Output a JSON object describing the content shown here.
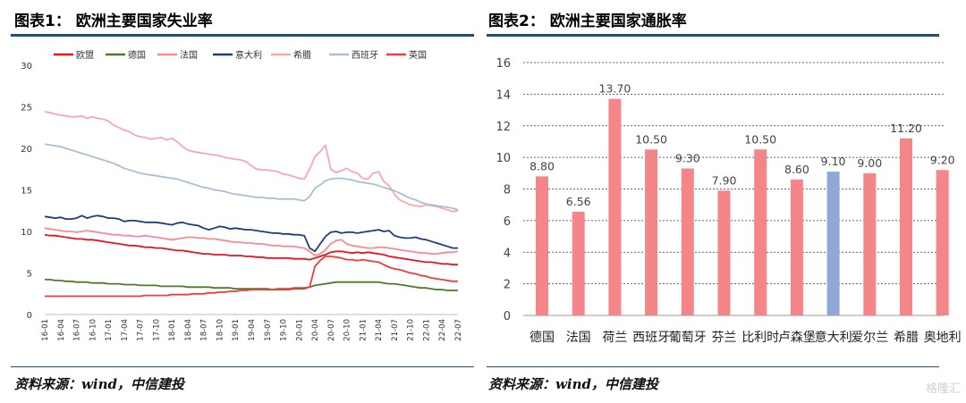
{
  "left_panel": {
    "title": "图表1： 欧洲主要国家失业率",
    "source": "资料来源：wind，中信建投"
  },
  "right_panel": {
    "title": "图表2： 欧洲主要国家通胀率",
    "source": "资料来源：wind，中信建投"
  },
  "watermark": "格隆汇",
  "colors": {
    "accent_rule": "#1f4e79",
    "bar_default": "#f4868a",
    "bar_highlight": "#8fa8d8"
  },
  "chart_data": [
    {
      "type": "line",
      "ylim": [
        0,
        30
      ],
      "yticks": [
        0,
        5,
        10,
        15,
        20,
        25,
        30
      ],
      "grid": false,
      "legend_placement": "top",
      "x": [
        "16-01",
        "16-02",
        "16-03",
        "16-04",
        "16-05",
        "16-06",
        "16-07",
        "16-08",
        "16-09",
        "16-10",
        "16-11",
        "16-12",
        "17-01",
        "17-02",
        "17-03",
        "17-04",
        "17-05",
        "17-06",
        "17-07",
        "17-08",
        "17-09",
        "17-10",
        "17-11",
        "17-12",
        "18-01",
        "18-02",
        "18-03",
        "18-04",
        "18-05",
        "18-06",
        "18-07",
        "18-08",
        "18-09",
        "18-10",
        "18-11",
        "18-12",
        "19-01",
        "19-02",
        "19-03",
        "19-04",
        "19-05",
        "19-06",
        "19-07",
        "19-08",
        "19-09",
        "19-10",
        "19-11",
        "19-12",
        "20-01",
        "20-02",
        "20-03",
        "20-04",
        "20-05",
        "20-06",
        "20-07",
        "20-08",
        "20-09",
        "20-10",
        "20-11",
        "20-12",
        "21-01",
        "21-02",
        "21-03",
        "21-04",
        "21-05",
        "21-06",
        "21-07",
        "21-08",
        "21-09",
        "21-10",
        "21-11",
        "21-12",
        "22-01",
        "22-02",
        "22-03",
        "22-04",
        "22-05",
        "22-06",
        "22-07"
      ],
      "xticks": [
        "16-01",
        "16-04",
        "16-07",
        "16-10",
        "17-01",
        "17-04",
        "17-07",
        "17-10",
        "18-01",
        "18-04",
        "18-07",
        "18-10",
        "19-01",
        "19-04",
        "19-07",
        "19-10",
        "20-01",
        "20-04",
        "20-07",
        "20-10",
        "21-01",
        "21-04",
        "21-07",
        "21-10",
        "22-01",
        "22-04",
        "22-07"
      ],
      "series": [
        {
          "name": "欧盟",
          "color": "#e0191f",
          "values": [
            9.6,
            9.5,
            9.5,
            9.4,
            9.3,
            9.2,
            9.1,
            9.1,
            9.0,
            9.0,
            8.9,
            8.8,
            8.7,
            8.6,
            8.5,
            8.4,
            8.3,
            8.3,
            8.2,
            8.1,
            8.1,
            8.0,
            8.0,
            7.9,
            7.8,
            7.7,
            7.7,
            7.6,
            7.5,
            7.4,
            7.3,
            7.3,
            7.2,
            7.2,
            7.2,
            7.1,
            7.1,
            7.1,
            7.0,
            7.0,
            6.9,
            6.9,
            6.8,
            6.8,
            6.8,
            6.8,
            6.8,
            6.7,
            6.7,
            6.7,
            6.6,
            6.8,
            7.0,
            7.2,
            7.5,
            7.6,
            7.6,
            7.5,
            7.4,
            7.5,
            7.4,
            7.5,
            7.4,
            7.3,
            7.2,
            7.0,
            6.9,
            6.8,
            6.7,
            6.6,
            6.5,
            6.4,
            6.3,
            6.3,
            6.2,
            6.1,
            6.1,
            6.0,
            6.0
          ]
        },
        {
          "name": "德国",
          "color": "#4f7a28",
          "values": [
            4.2,
            4.2,
            4.1,
            4.1,
            4.0,
            4.0,
            3.9,
            3.9,
            3.9,
            3.8,
            3.8,
            3.8,
            3.7,
            3.7,
            3.7,
            3.6,
            3.6,
            3.6,
            3.5,
            3.5,
            3.5,
            3.5,
            3.4,
            3.4,
            3.4,
            3.4,
            3.4,
            3.3,
            3.3,
            3.3,
            3.3,
            3.3,
            3.2,
            3.2,
            3.2,
            3.2,
            3.1,
            3.1,
            3.1,
            3.1,
            3.1,
            3.1,
            3.1,
            3.0,
            3.0,
            3.0,
            3.0,
            3.1,
            3.1,
            3.1,
            3.3,
            3.5,
            3.6,
            3.7,
            3.8,
            3.9,
            3.9,
            3.9,
            3.9,
            3.9,
            3.9,
            3.9,
            3.9,
            3.9,
            3.8,
            3.7,
            3.7,
            3.6,
            3.5,
            3.4,
            3.3,
            3.2,
            3.2,
            3.1,
            3.0,
            3.0,
            2.9,
            2.9,
            2.9
          ]
        },
        {
          "name": "法国",
          "color": "#f48b95",
          "values": [
            10.4,
            10.3,
            10.2,
            10.1,
            10.0,
            10.0,
            9.9,
            10.0,
            10.1,
            10.0,
            9.9,
            9.8,
            9.7,
            9.6,
            9.6,
            9.5,
            9.5,
            9.4,
            9.4,
            9.5,
            9.4,
            9.3,
            9.2,
            9.1,
            9.0,
            9.1,
            9.2,
            9.3,
            9.3,
            9.2,
            9.2,
            9.1,
            9.1,
            9.0,
            8.9,
            8.8,
            8.7,
            8.7,
            8.6,
            8.6,
            8.5,
            8.5,
            8.4,
            8.3,
            8.3,
            8.2,
            8.2,
            8.2,
            8.1,
            8.0,
            7.6,
            7.1,
            7.3,
            7.8,
            8.5,
            8.9,
            9.0,
            8.5,
            8.3,
            8.2,
            8.1,
            8.0,
            8.0,
            8.1,
            8.1,
            8.0,
            7.9,
            7.8,
            7.7,
            7.6,
            7.5,
            7.4,
            7.4,
            7.3,
            7.3,
            7.4,
            7.5,
            7.5,
            7.6
          ]
        },
        {
          "name": "意大利",
          "color": "#1f3d7a",
          "values": [
            11.8,
            11.7,
            11.6,
            11.7,
            11.5,
            11.5,
            11.6,
            11.9,
            11.6,
            11.8,
            11.9,
            11.8,
            11.6,
            11.6,
            11.5,
            11.2,
            11.3,
            11.3,
            11.2,
            11.1,
            11.1,
            11.1,
            11.0,
            10.9,
            10.8,
            11.0,
            11.1,
            10.9,
            10.8,
            10.7,
            10.4,
            10.2,
            10.4,
            10.6,
            10.5,
            10.3,
            10.4,
            10.3,
            10.2,
            10.2,
            10.1,
            10.0,
            9.9,
            9.8,
            9.8,
            9.7,
            9.7,
            9.6,
            9.6,
            9.5,
            8.0,
            7.6,
            8.5,
            9.4,
            9.9,
            10.0,
            9.8,
            9.9,
            9.9,
            9.8,
            9.9,
            10.0,
            10.1,
            10.2,
            10.0,
            10.1,
            9.5,
            9.3,
            9.2,
            9.2,
            9.3,
            9.1,
            9.0,
            8.8,
            8.6,
            8.4,
            8.2,
            8.0,
            8.0
          ]
        },
        {
          "name": "希腊",
          "color": "#f7a8ae",
          "values": [
            24.4,
            24.3,
            24.1,
            24.0,
            23.9,
            23.8,
            23.8,
            23.9,
            23.6,
            23.8,
            23.6,
            23.5,
            23.3,
            22.8,
            22.5,
            22.2,
            22.0,
            21.6,
            21.4,
            21.3,
            21.1,
            21.2,
            21.3,
            21.0,
            21.2,
            20.8,
            20.2,
            19.8,
            19.6,
            19.5,
            19.4,
            19.3,
            19.2,
            19.1,
            18.9,
            18.8,
            18.7,
            18.6,
            18.4,
            17.9,
            17.5,
            17.4,
            17.4,
            17.3,
            17.2,
            16.9,
            16.8,
            16.6,
            16.4,
            16.3,
            17.5,
            19.0,
            19.6,
            20.4,
            17.5,
            17.1,
            17.3,
            17.6,
            17.2,
            17.0,
            16.4,
            16.3,
            17.0,
            17.2,
            16.0,
            15.5,
            14.5,
            13.8,
            13.5,
            13.2,
            13.1,
            13.0,
            13.2,
            13.1,
            13.0,
            12.8,
            12.6,
            12.4,
            12.5
          ]
        },
        {
          "name": "西班牙",
          "color": "#a9bfd3",
          "values": [
            20.5,
            20.4,
            20.3,
            20.2,
            20.0,
            19.8,
            19.6,
            19.4,
            19.2,
            19.0,
            18.8,
            18.6,
            18.4,
            18.2,
            17.9,
            17.6,
            17.4,
            17.2,
            17.0,
            16.9,
            16.8,
            16.7,
            16.6,
            16.5,
            16.4,
            16.3,
            16.1,
            15.9,
            15.7,
            15.5,
            15.3,
            15.2,
            15.0,
            14.9,
            14.8,
            14.6,
            14.5,
            14.4,
            14.3,
            14.2,
            14.1,
            14.1,
            14.0,
            14.0,
            13.9,
            13.9,
            13.9,
            13.9,
            13.8,
            13.7,
            14.2,
            15.2,
            15.6,
            16.1,
            16.3,
            16.4,
            16.4,
            16.3,
            16.2,
            16.0,
            15.9,
            15.8,
            15.7,
            15.5,
            15.3,
            15.1,
            14.9,
            14.6,
            14.3,
            14.0,
            13.8,
            13.5,
            13.3,
            13.2,
            13.1,
            13.0,
            12.9,
            12.8,
            12.6
          ]
        },
        {
          "name": "英国",
          "color": "#f03c3c",
          "values": [
            2.2,
            2.2,
            2.2,
            2.2,
            2.2,
            2.2,
            2.2,
            2.2,
            2.2,
            2.2,
            2.2,
            2.2,
            2.2,
            2.2,
            2.2,
            2.2,
            2.2,
            2.2,
            2.2,
            2.3,
            2.3,
            2.3,
            2.3,
            2.3,
            2.4,
            2.4,
            2.4,
            2.4,
            2.5,
            2.5,
            2.5,
            2.6,
            2.6,
            2.7,
            2.7,
            2.8,
            2.8,
            2.9,
            2.9,
            3.0,
            3.0,
            3.0,
            3.0,
            3.0,
            3.1,
            3.1,
            3.1,
            3.2,
            3.2,
            3.2,
            3.3,
            5.8,
            6.5,
            7.0,
            7.0,
            6.9,
            6.8,
            6.6,
            6.6,
            6.5,
            6.6,
            6.5,
            6.4,
            6.3,
            6.0,
            5.7,
            5.5,
            5.4,
            5.2,
            5.0,
            4.9,
            4.7,
            4.6,
            4.4,
            4.3,
            4.2,
            4.1,
            4.0,
            4.0
          ]
        }
      ]
    },
    {
      "type": "bar",
      "ylim": [
        0,
        16
      ],
      "yticks": [
        0,
        2,
        4,
        6,
        8,
        10,
        12,
        14,
        16
      ],
      "grid": true,
      "categories": [
        "德国",
        "法国",
        "荷兰",
        "西班牙",
        "葡萄牙",
        "芬兰",
        "比利时",
        "卢森堡",
        "意大利",
        "爱尔兰",
        "希腊",
        "奥地利"
      ],
      "values": [
        8.8,
        6.56,
        13.7,
        10.5,
        9.3,
        7.9,
        10.5,
        8.6,
        9.1,
        9.0,
        11.2,
        9.2
      ],
      "labels": [
        "8.80",
        "6.56",
        "13.70",
        "10.50",
        "9.30",
        "7.90",
        "10.50",
        "8.60",
        "9.10",
        "9.00",
        "11.20",
        "9.20"
      ],
      "highlight_index": 8
    }
  ]
}
